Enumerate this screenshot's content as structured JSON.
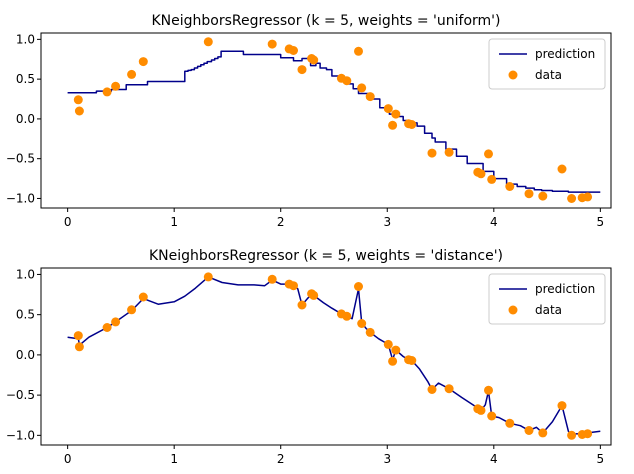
{
  "colors": {
    "prediction": "#00008b",
    "data": "#ff8c00",
    "axes": "#000000",
    "legend_border": "#cccccc"
  },
  "chart_data": [
    {
      "type": "line+scatter",
      "title": "KNeighborsRegressor (k = 5, weights = 'uniform')",
      "xlim": [
        -0.25,
        5.1
      ],
      "ylim": [
        -1.12,
        1.08
      ],
      "xticks": [
        0,
        1,
        2,
        3,
        4,
        5
      ],
      "xtick_labels": [
        "0",
        "1",
        "2",
        "3",
        "4",
        "5"
      ],
      "yticks": [
        -1.0,
        -0.5,
        0.0,
        0.5,
        1.0
      ],
      "ytick_labels": [
        "−1.0",
        "−0.5",
        "0.0",
        "0.5",
        "1.0"
      ],
      "legend": {
        "position": "top-right",
        "entries": [
          "prediction",
          "data"
        ]
      },
      "series": [
        {
          "name": "prediction",
          "kind": "line",
          "x": [
            0.0,
            0.27,
            0.27,
            0.41,
            0.41,
            0.55,
            0.55,
            0.75,
            0.75,
            1.1,
            1.1,
            1.13,
            1.13,
            1.16,
            1.16,
            1.19,
            1.19,
            1.22,
            1.22,
            1.25,
            1.25,
            1.28,
            1.28,
            1.31,
            1.31,
            1.35,
            1.35,
            1.38,
            1.38,
            1.41,
            1.41,
            1.44,
            1.44,
            1.65,
            1.65,
            2.0,
            2.0,
            2.12,
            2.12,
            2.2,
            2.2,
            2.28,
            2.28,
            2.33,
            2.33,
            2.37,
            2.37,
            2.43,
            2.43,
            2.48,
            2.48,
            2.55,
            2.55,
            2.62,
            2.62,
            2.68,
            2.68,
            2.73,
            2.73,
            2.83,
            2.83,
            2.93,
            2.93,
            3.02,
            3.02,
            3.08,
            3.08,
            3.15,
            3.15,
            3.2,
            3.2,
            3.28,
            3.28,
            3.35,
            3.35,
            3.42,
            3.42,
            3.45,
            3.45,
            3.55,
            3.55,
            3.65,
            3.65,
            3.75,
            3.75,
            3.9,
            3.9,
            4.0,
            4.0,
            4.12,
            4.12,
            4.22,
            4.22,
            4.3,
            4.3,
            4.38,
            4.38,
            4.45,
            4.45,
            4.55,
            4.55,
            4.7,
            4.7,
            5.0
          ],
          "y": [
            0.33,
            0.33,
            0.35,
            0.35,
            0.37,
            0.37,
            0.43,
            0.43,
            0.47,
            0.47,
            0.6,
            0.6,
            0.61,
            0.61,
            0.62,
            0.62,
            0.64,
            0.64,
            0.66,
            0.66,
            0.68,
            0.68,
            0.7,
            0.7,
            0.72,
            0.72,
            0.74,
            0.74,
            0.76,
            0.76,
            0.78,
            0.78,
            0.85,
            0.85,
            0.81,
            0.81,
            0.77,
            0.77,
            0.73,
            0.73,
            0.76,
            0.76,
            0.67,
            0.67,
            0.7,
            0.7,
            0.64,
            0.64,
            0.62,
            0.62,
            0.54,
            0.54,
            0.48,
            0.48,
            0.44,
            0.44,
            0.38,
            0.38,
            0.32,
            0.32,
            0.25,
            0.25,
            0.14,
            0.14,
            0.06,
            0.06,
            0.03,
            0.03,
            -0.02,
            -0.02,
            -0.05,
            -0.05,
            -0.09,
            -0.09,
            -0.18,
            -0.18,
            -0.24,
            -0.24,
            -0.29,
            -0.29,
            -0.38,
            -0.38,
            -0.47,
            -0.47,
            -0.56,
            -0.56,
            -0.66,
            -0.66,
            -0.75,
            -0.75,
            -0.82,
            -0.82,
            -0.85,
            -0.85,
            -0.87,
            -0.87,
            -0.89,
            -0.89,
            -0.9,
            -0.9,
            -0.91,
            -0.91,
            -0.92,
            -0.92
          ]
        },
        {
          "name": "data",
          "kind": "scatter",
          "x": [
            0.1,
            0.11,
            0.37,
            0.45,
            0.6,
            0.71,
            1.32,
            1.92,
            2.08,
            2.12,
            2.2,
            2.29,
            2.31,
            2.57,
            2.62,
            2.73,
            2.76,
            2.84,
            3.01,
            3.05,
            3.08,
            3.2,
            3.23,
            3.42,
            3.58,
            3.85,
            3.88,
            3.95,
            3.98,
            4.15,
            4.33,
            4.46,
            4.64,
            4.73,
            4.83,
            4.88
          ],
          "y": [
            0.24,
            0.1,
            0.34,
            0.41,
            0.56,
            0.72,
            0.97,
            0.94,
            0.88,
            0.86,
            0.62,
            0.76,
            0.74,
            0.51,
            0.48,
            0.85,
            0.39,
            0.28,
            0.13,
            -0.08,
            0.06,
            -0.06,
            -0.07,
            -0.43,
            -0.42,
            -0.67,
            -0.69,
            -0.44,
            -0.76,
            -0.85,
            -0.94,
            -0.97,
            -0.63,
            -1.0,
            -0.99,
            -0.98
          ]
        }
      ]
    },
    {
      "type": "line+scatter",
      "title": "KNeighborsRegressor (k = 5, weights = 'distance')",
      "xlim": [
        -0.25,
        5.1
      ],
      "ylim": [
        -1.12,
        1.08
      ],
      "xticks": [
        0,
        1,
        2,
        3,
        4,
        5
      ],
      "xtick_labels": [
        "0",
        "1",
        "2",
        "3",
        "4",
        "5"
      ],
      "yticks": [
        -1.0,
        -0.5,
        0.0,
        0.5,
        1.0
      ],
      "ytick_labels": [
        "−1.0",
        "−0.5",
        "0.0",
        "0.5",
        "1.0"
      ],
      "legend": {
        "position": "top-right",
        "entries": [
          "prediction",
          "data"
        ]
      },
      "series": [
        {
          "name": "prediction",
          "kind": "line",
          "x": [
            0.0,
            0.1,
            0.105,
            0.11,
            0.2,
            0.37,
            0.45,
            0.6,
            0.71,
            0.85,
            1.0,
            1.1,
            1.2,
            1.32,
            1.45,
            1.6,
            1.75,
            1.85,
            1.92,
            2.0,
            2.08,
            2.12,
            2.16,
            2.2,
            2.25,
            2.29,
            2.31,
            2.4,
            2.48,
            2.57,
            2.62,
            2.67,
            2.73,
            2.76,
            2.8,
            2.84,
            2.92,
            3.01,
            3.05,
            3.08,
            3.15,
            3.2,
            3.23,
            3.3,
            3.38,
            3.42,
            3.48,
            3.58,
            3.7,
            3.85,
            3.88,
            3.92,
            3.95,
            3.98,
            4.05,
            4.15,
            4.25,
            4.33,
            4.4,
            4.46,
            4.55,
            4.64,
            4.7,
            4.73,
            4.78,
            4.83,
            4.88,
            5.0
          ],
          "y": [
            0.22,
            0.2,
            0.17,
            0.12,
            0.22,
            0.34,
            0.41,
            0.55,
            0.7,
            0.63,
            0.66,
            0.73,
            0.83,
            0.97,
            0.9,
            0.87,
            0.87,
            0.86,
            0.93,
            0.88,
            0.88,
            0.86,
            0.82,
            0.62,
            0.7,
            0.75,
            0.74,
            0.65,
            0.58,
            0.51,
            0.48,
            0.45,
            0.82,
            0.4,
            0.33,
            0.28,
            0.2,
            0.13,
            -0.06,
            0.06,
            -0.02,
            -0.06,
            -0.07,
            -0.17,
            -0.33,
            -0.43,
            -0.35,
            -0.42,
            -0.53,
            -0.66,
            -0.69,
            -0.62,
            -0.45,
            -0.76,
            -0.78,
            -0.85,
            -0.88,
            -0.94,
            -0.9,
            -0.97,
            -0.83,
            -0.63,
            -0.95,
            -1.0,
            -0.98,
            -0.99,
            -0.97,
            -0.95
          ]
        },
        {
          "name": "data",
          "kind": "scatter",
          "x": [
            0.1,
            0.11,
            0.37,
            0.45,
            0.6,
            0.71,
            1.32,
            1.92,
            2.08,
            2.12,
            2.2,
            2.29,
            2.31,
            2.57,
            2.62,
            2.73,
            2.76,
            2.84,
            3.01,
            3.05,
            3.08,
            3.2,
            3.23,
            3.42,
            3.58,
            3.85,
            3.88,
            3.95,
            3.98,
            4.15,
            4.33,
            4.46,
            4.64,
            4.73,
            4.83,
            4.88
          ],
          "y": [
            0.24,
            0.1,
            0.34,
            0.41,
            0.56,
            0.72,
            0.97,
            0.94,
            0.88,
            0.86,
            0.62,
            0.76,
            0.74,
            0.51,
            0.48,
            0.85,
            0.39,
            0.28,
            0.13,
            -0.08,
            0.06,
            -0.06,
            -0.07,
            -0.43,
            -0.42,
            -0.67,
            -0.69,
            -0.44,
            -0.76,
            -0.85,
            -0.94,
            -0.97,
            -0.63,
            -1.0,
            -0.99,
            -0.98
          ]
        }
      ]
    }
  ]
}
